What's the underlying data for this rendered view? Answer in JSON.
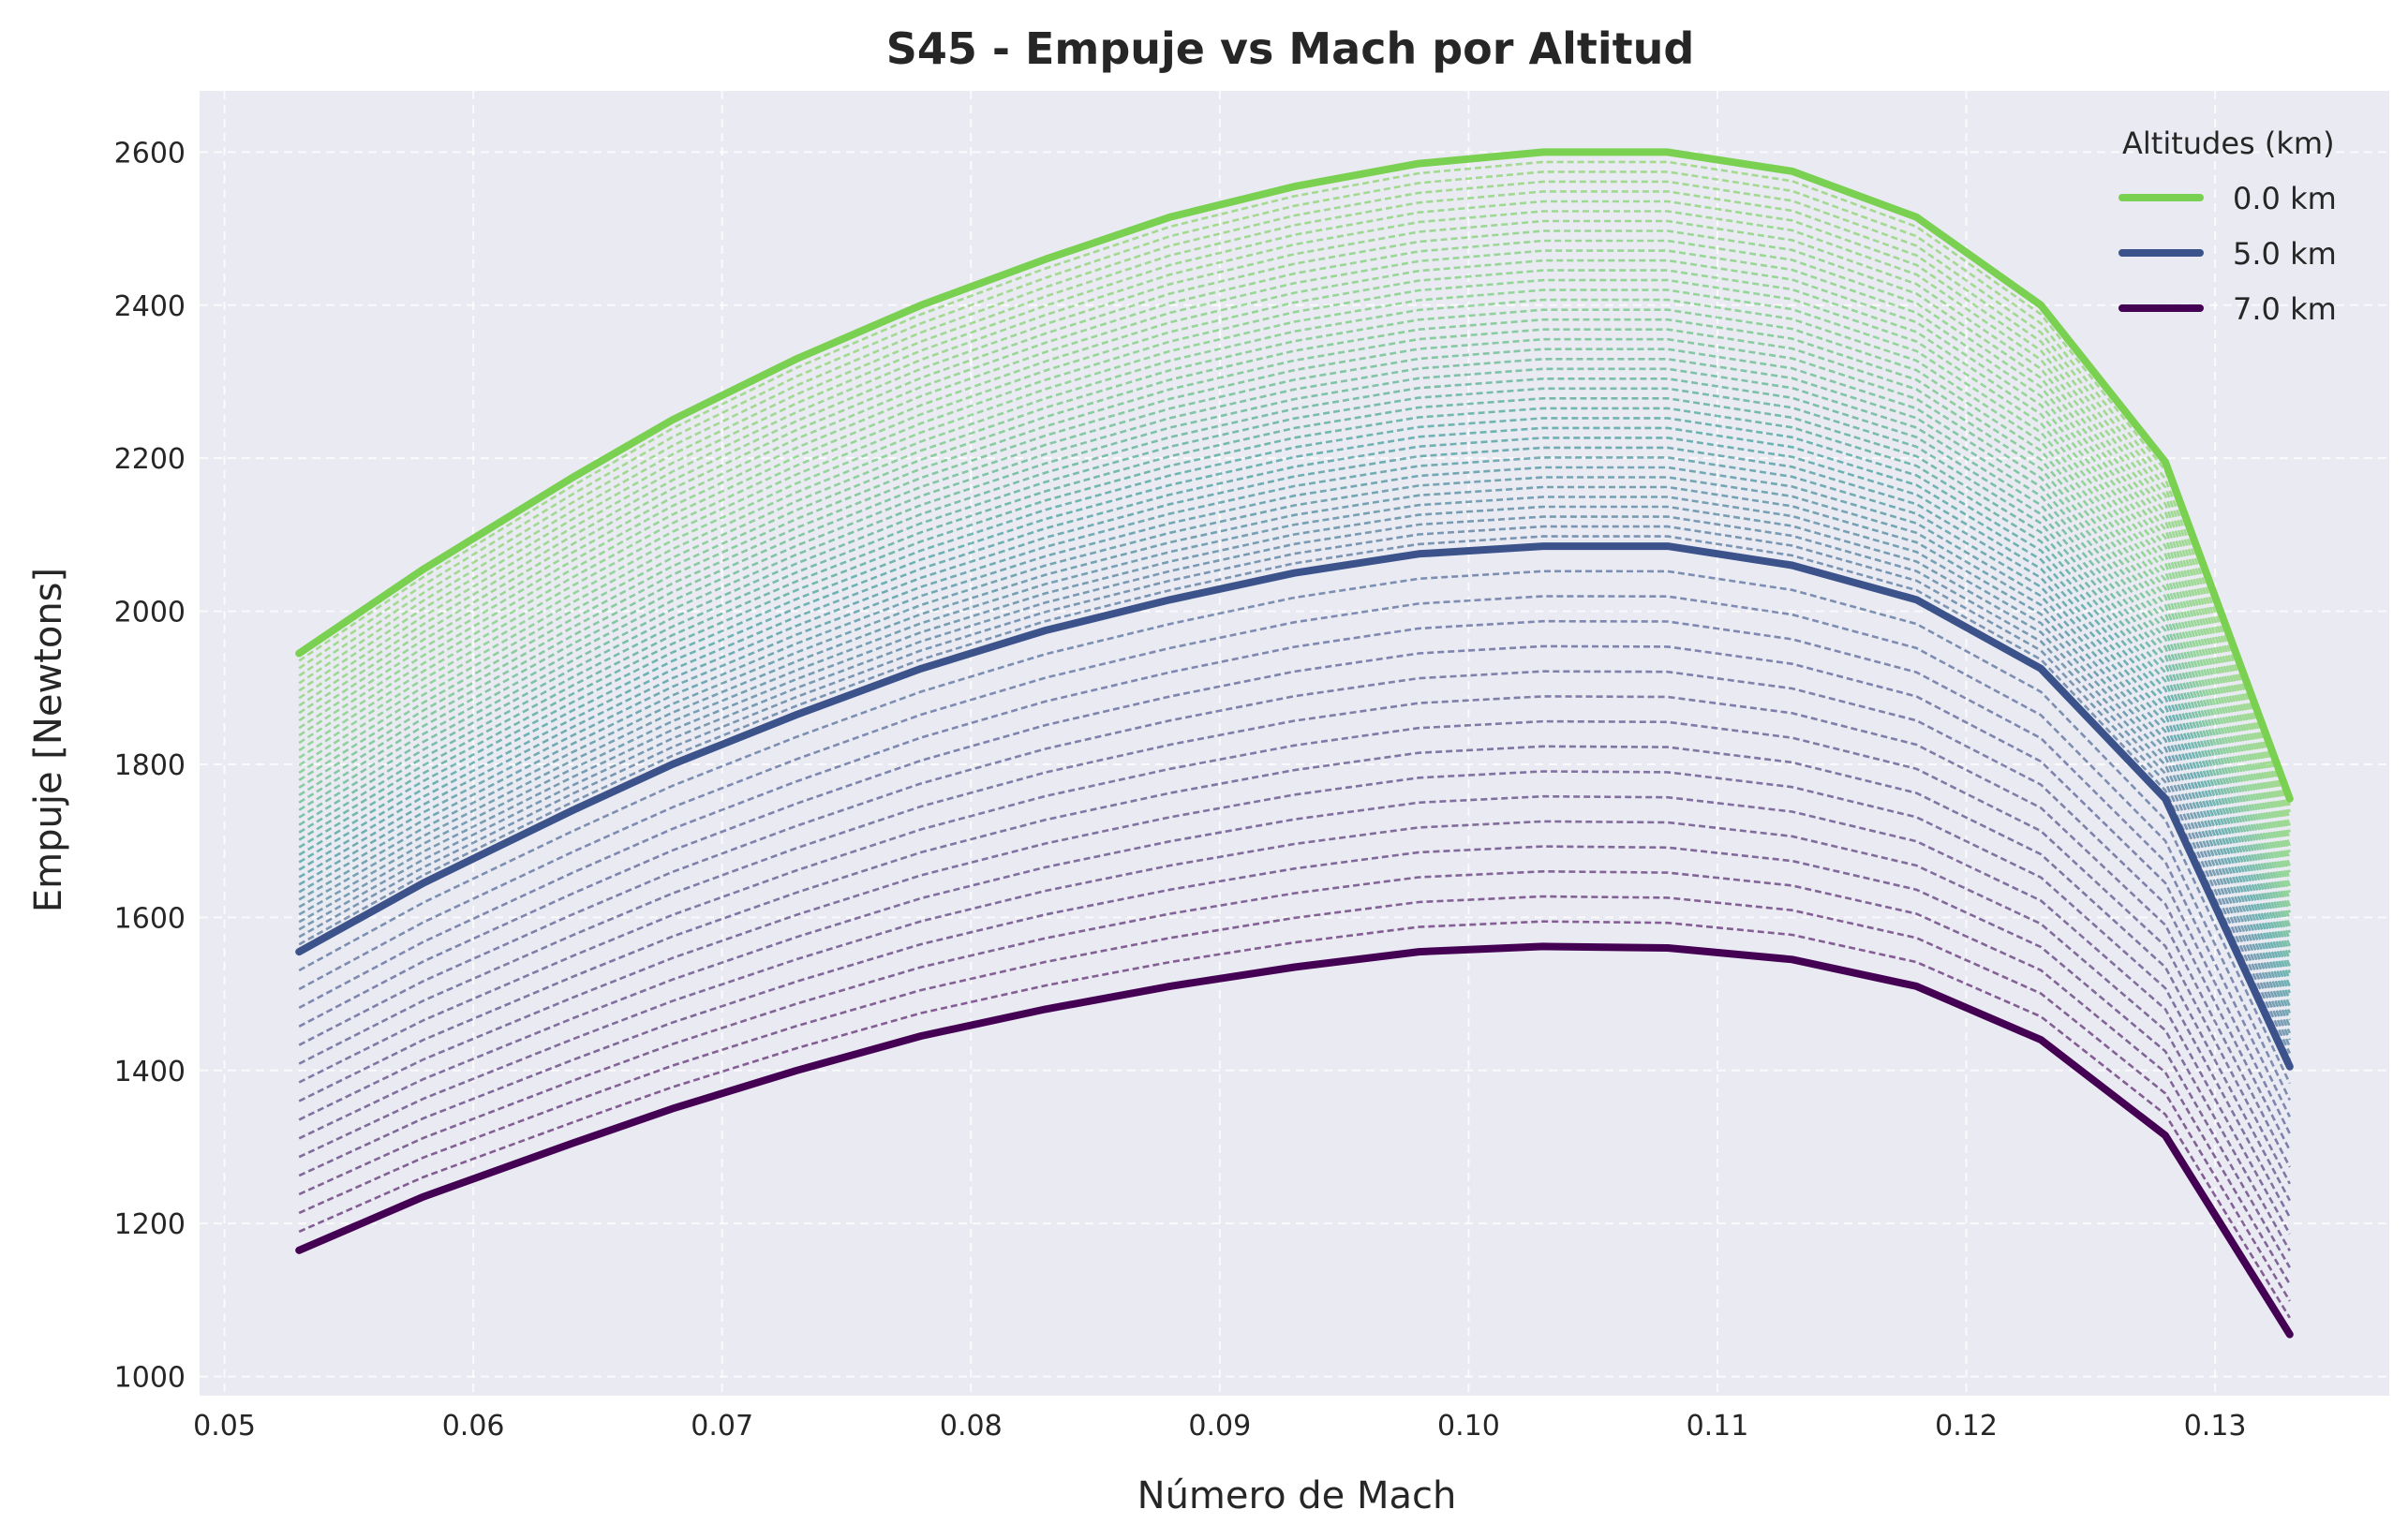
{
  "chart_data": {
    "type": "line",
    "title": "S45 - Empuje vs Mach por Altitud",
    "xlabel": "Número de Mach",
    "ylabel": "Empuje [Newtons]",
    "xlim": [
      0.049,
      0.137
    ],
    "ylim": [
      975,
      2680
    ],
    "x_ticks": [
      0.05,
      0.06,
      0.07,
      0.08,
      0.09,
      0.1,
      0.11,
      0.12,
      0.13
    ],
    "x_tick_labels": [
      "0.05",
      "0.06",
      "0.07",
      "0.08",
      "0.09",
      "0.10",
      "0.11",
      "0.12",
      "0.13"
    ],
    "y_ticks": [
      1000,
      1200,
      1400,
      1600,
      1800,
      2000,
      2200,
      2400,
      2600
    ],
    "y_tick_labels": [
      "1000",
      "1200",
      "1400",
      "1600",
      "1800",
      "2000",
      "2200",
      "2400",
      "2600"
    ],
    "grid": true,
    "x": [
      0.053,
      0.058,
      0.064,
      0.068,
      0.073,
      0.078,
      0.083,
      0.088,
      0.093,
      0.098,
      0.103,
      0.108,
      0.113,
      0.118,
      0.123,
      0.128,
      0.133
    ],
    "series": [
      {
        "name": "0.0 km",
        "altitude": 0.0,
        "color": "#7ad151",
        "values": [
          1945,
          2055,
          2175,
          2250,
          2330,
          2400,
          2460,
          2515,
          2555,
          2585,
          2600,
          2600,
          2575,
          2515,
          2400,
          2195,
          1755
        ]
      },
      {
        "name": "5.0 km",
        "altitude": 5.0,
        "color": "#3b528b",
        "values": [
          1555,
          1645,
          1740,
          1800,
          1865,
          1925,
          1975,
          2015,
          2050,
          2075,
          2085,
          2085,
          2060,
          2015,
          1925,
          1755,
          1405
        ]
      },
      {
        "name": "7.0 km",
        "altitude": 7.0,
        "color": "#440154",
        "values": [
          1165,
          1235,
          1305,
          1350,
          1400,
          1445,
          1480,
          1510,
          1535,
          1555,
          1562,
          1560,
          1545,
          1510,
          1440,
          1315,
          1055
        ]
      }
    ],
    "intermediate_altitude_step_km": 0.125,
    "legend": {
      "title": "Altitudes (km)",
      "position": "top-right"
    }
  }
}
